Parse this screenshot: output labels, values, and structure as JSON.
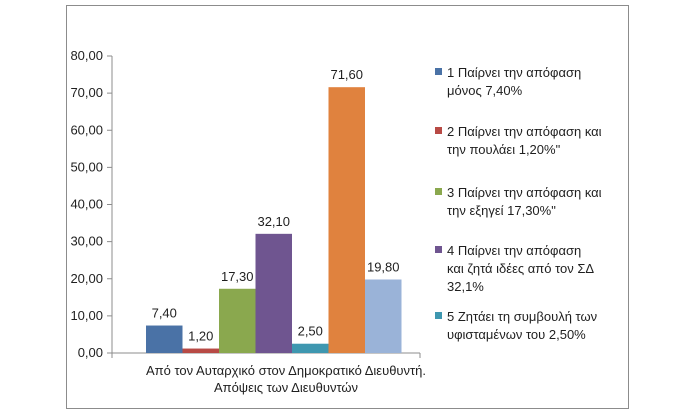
{
  "chart_data": {
    "type": "bar",
    "categories": [
      "Από τον Αυταρχικό στον Δημοκρατικό Διευθυντή.\nΑπόψεις των Διευθυντών"
    ],
    "xlabel": "",
    "ylabel": "",
    "ylim": [
      0,
      80
    ],
    "yticks": [
      "0,00",
      "10,00",
      "20,00",
      "30,00",
      "40,00",
      "50,00",
      "60,00",
      "70,00",
      "80,00"
    ],
    "grid": false,
    "legend_position": "right",
    "series": [
      {
        "name": "1 Παίρνει την απόφαση μόνος 7,40%",
        "values": [
          7.4
        ],
        "label": "7,40",
        "color": "#4a72a6"
      },
      {
        "name": "2 Παίρνει την απόφαση και την πουλάει 1,20%\"",
        "values": [
          1.2
        ],
        "label": "1,20",
        "color": "#b84a45"
      },
      {
        "name": "3 Παίρνει την απόφαση και την εξηγεί 17,30%\"",
        "values": [
          17.3
        ],
        "label": "17,30",
        "color": "#8aa84e"
      },
      {
        "name": "4  Παίρνει την απόφαση και ζητά ιδέες από τον ΣΔ 32,1%",
        "values": [
          32.1
        ],
        "label": "32,10",
        "color": "#6f5590"
      },
      {
        "name": "5 Ζητάει τη συμβουλή των υφισταμένων του 2,50%",
        "values": [
          2.5
        ],
        "label": "2,50",
        "color": "#3e97b0"
      },
      {
        "name": "",
        "values": [
          71.6
        ],
        "label": "71,60",
        "color": "#e0823e"
      },
      {
        "name": "",
        "values": [
          19.8
        ],
        "label": "19,80",
        "color": "#9ab3d8"
      }
    ]
  },
  "legend": {
    "items": [
      {
        "text": "1 Παίρνει την απόφαση\nμόνος 7,40%",
        "color": "#4a72a6"
      },
      {
        "text": "2 Παίρνει την απόφαση και\nτην πουλάει 1,20%\"",
        "color": "#b84a45"
      },
      {
        "text": "3 Παίρνει την απόφαση και\nτην εξηγεί 17,30%\"",
        "color": "#8aa84e"
      },
      {
        "text": "4  Παίρνει την απόφαση\nκαι ζητά ιδέες από τον ΣΔ\n32,1%",
        "color": "#6f5590"
      },
      {
        "text": "5 Ζητάει τη συμβουλή των\nυφισταμένων του 2,50%",
        "color": "#3e97b0"
      }
    ]
  }
}
